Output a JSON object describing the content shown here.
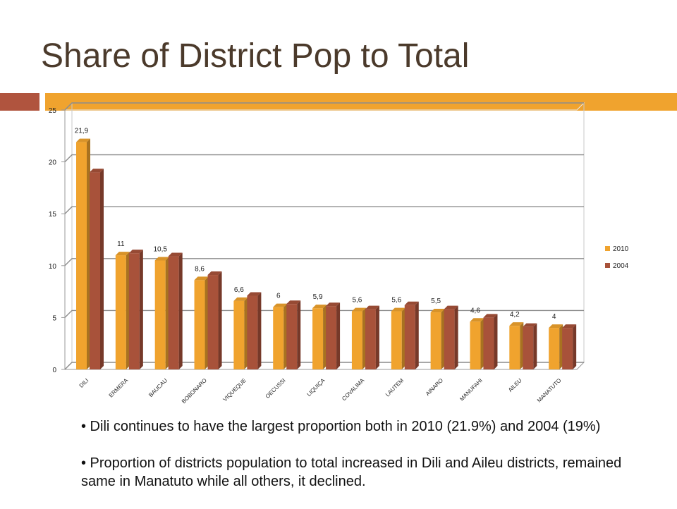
{
  "slide": {
    "title": "Share of District Pop to Total"
  },
  "accent_colors": {
    "red": "#b0543e",
    "orange": "#f0a32e",
    "title_text": "#4b3a2b"
  },
  "bullets": [
    "• Dili continues to have the largest proportion both in 2010 (21.9%) and 2004 (19%)",
    "• Proportion of districts population to total increased in Dili and Aileu districts, remained same in Manatuto while all others, it declined."
  ],
  "chart_data": {
    "type": "bar",
    "categories": [
      "DILI",
      "ERMERA",
      "BAUCAU",
      "BOBONARO",
      "VIQUEQUE",
      "OECUSSI",
      "LIQUIÇA",
      "COVALIMA",
      "LAUTEM",
      "AINARO",
      "MANUFAHI",
      "AILEU",
      "MANATUTO"
    ],
    "series": [
      {
        "name": "2010",
        "color": "#f0a32e",
        "values": [
          21.9,
          11,
          10.5,
          8.6,
          6.6,
          6,
          5.9,
          5.6,
          5.6,
          5.5,
          4.6,
          4.2,
          4
        ],
        "labels": [
          "21,9",
          "11",
          "10,5",
          "8,6",
          "6,6",
          "6",
          "5,9",
          "5,6",
          "5,6",
          "5,5",
          "4,6",
          "4,2",
          "4"
        ]
      },
      {
        "name": "2004",
        "color": "#a8523a",
        "values": [
          19,
          11.2,
          10.9,
          9.1,
          7.1,
          6.3,
          6.1,
          5.8,
          6.2,
          5.8,
          5,
          4.1,
          4
        ]
      }
    ],
    "y_ticks": [
      "0",
      "5",
      "10",
      "15",
      "20",
      "25"
    ],
    "ylim": [
      0,
      25
    ],
    "grid": true,
    "legend_position": "right"
  }
}
